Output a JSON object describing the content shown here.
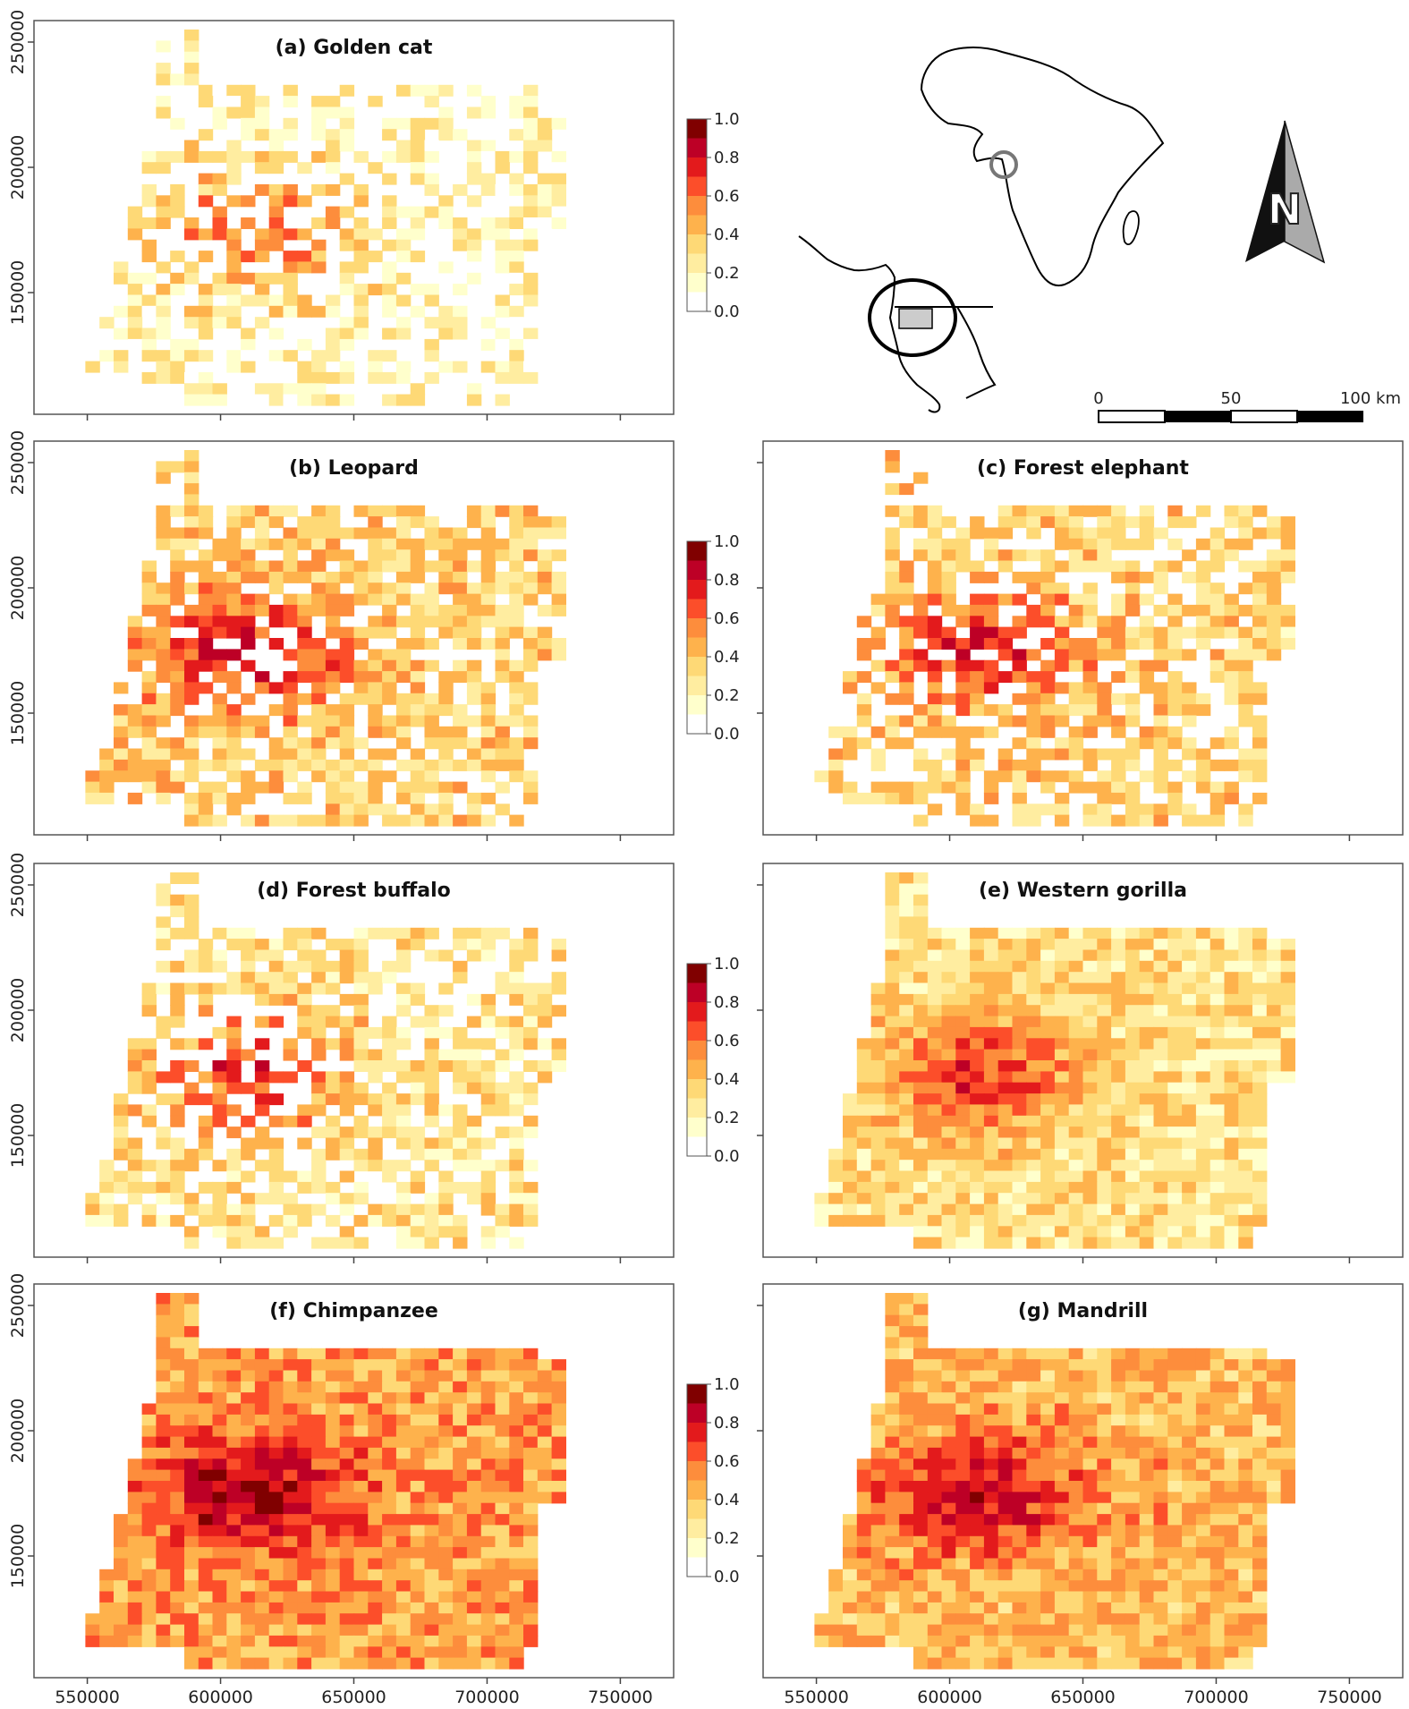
{
  "figure": {
    "panels": [
      {
        "id": "a",
        "title": "(a) Golden cat",
        "has_legend": true,
        "show_y_labels": true,
        "show_x_labels": false,
        "intensity": 0.35,
        "density": 0.55,
        "seed": 11
      },
      {
        "id": "b",
        "title": "(b) Leopard",
        "has_legend": true,
        "show_y_labels": true,
        "show_x_labels": false,
        "intensity": 0.65,
        "density": 0.72,
        "seed": 23
      },
      {
        "id": "c",
        "title": "(c) Forest elephant",
        "has_legend": false,
        "show_y_labels": false,
        "show_x_labels": false,
        "intensity": 0.62,
        "density": 0.68,
        "seed": 37
      },
      {
        "id": "d",
        "title": "(d) Forest buffalo",
        "has_legend": true,
        "show_y_labels": true,
        "show_x_labels": false,
        "intensity": 0.5,
        "density": 0.66,
        "seed": 41
      },
      {
        "id": "e",
        "title": "(e) Western gorilla",
        "has_legend": false,
        "show_y_labels": false,
        "show_x_labels": false,
        "intensity": 0.5,
        "density": 1.0,
        "seed": 53
      },
      {
        "id": "f",
        "title": "(f) Chimpanzee",
        "has_legend": true,
        "show_y_labels": true,
        "show_x_labels": true,
        "intensity": 0.9,
        "density": 1.0,
        "seed": 67
      },
      {
        "id": "g",
        "title": "(g) Mandrill",
        "has_legend": false,
        "show_y_labels": false,
        "show_x_labels": true,
        "intensity": 0.78,
        "density": 1.0,
        "seed": 79
      }
    ],
    "x_ticks": [
      "550000",
      "600000",
      "650000",
      "700000",
      "750000"
    ],
    "y_ticks": [
      "150000",
      "200000",
      "250000"
    ],
    "legend": {
      "labels": [
        "1.0",
        "0.8",
        "0.6",
        "0.4",
        "0.2",
        "0.0"
      ],
      "colors": [
        "#800000",
        "#bd0026",
        "#e31a1c",
        "#fc4e2a",
        "#fd8d3c",
        "#feb24c",
        "#fed976",
        "#ffeda0",
        "#ffffcc",
        "#ffffff"
      ]
    },
    "inset": {
      "scale_labels": [
        "0",
        "50",
        "100 km"
      ],
      "north_label": "N"
    }
  }
}
